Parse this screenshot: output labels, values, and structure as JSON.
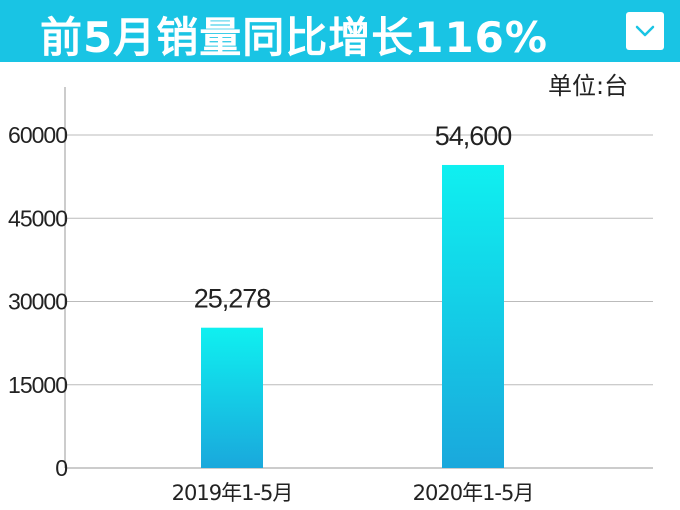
{
  "header": {
    "title": "前5月销量同比增长116%",
    "collapse_icon": "chevron-down-icon",
    "bg_color": "#19c4e4"
  },
  "unit_label": "单位:台",
  "chart_data": {
    "type": "bar",
    "title": "前5月销量同比增长116%",
    "categories": [
      "2019年1-5月",
      "2020年1-5月"
    ],
    "values": [
      25278,
      54600
    ],
    "data_labels": [
      "25,278",
      "54,600"
    ],
    "yticks": [
      0,
      15000,
      30000,
      45000,
      60000
    ],
    "ytick_labels": [
      "0",
      "15000",
      "30000",
      "45000",
      "60000"
    ],
    "ylim": [
      0,
      67500
    ],
    "grid": true,
    "bar_gradient": [
      "#0ff0f0",
      "#1aa8dc"
    ]
  }
}
